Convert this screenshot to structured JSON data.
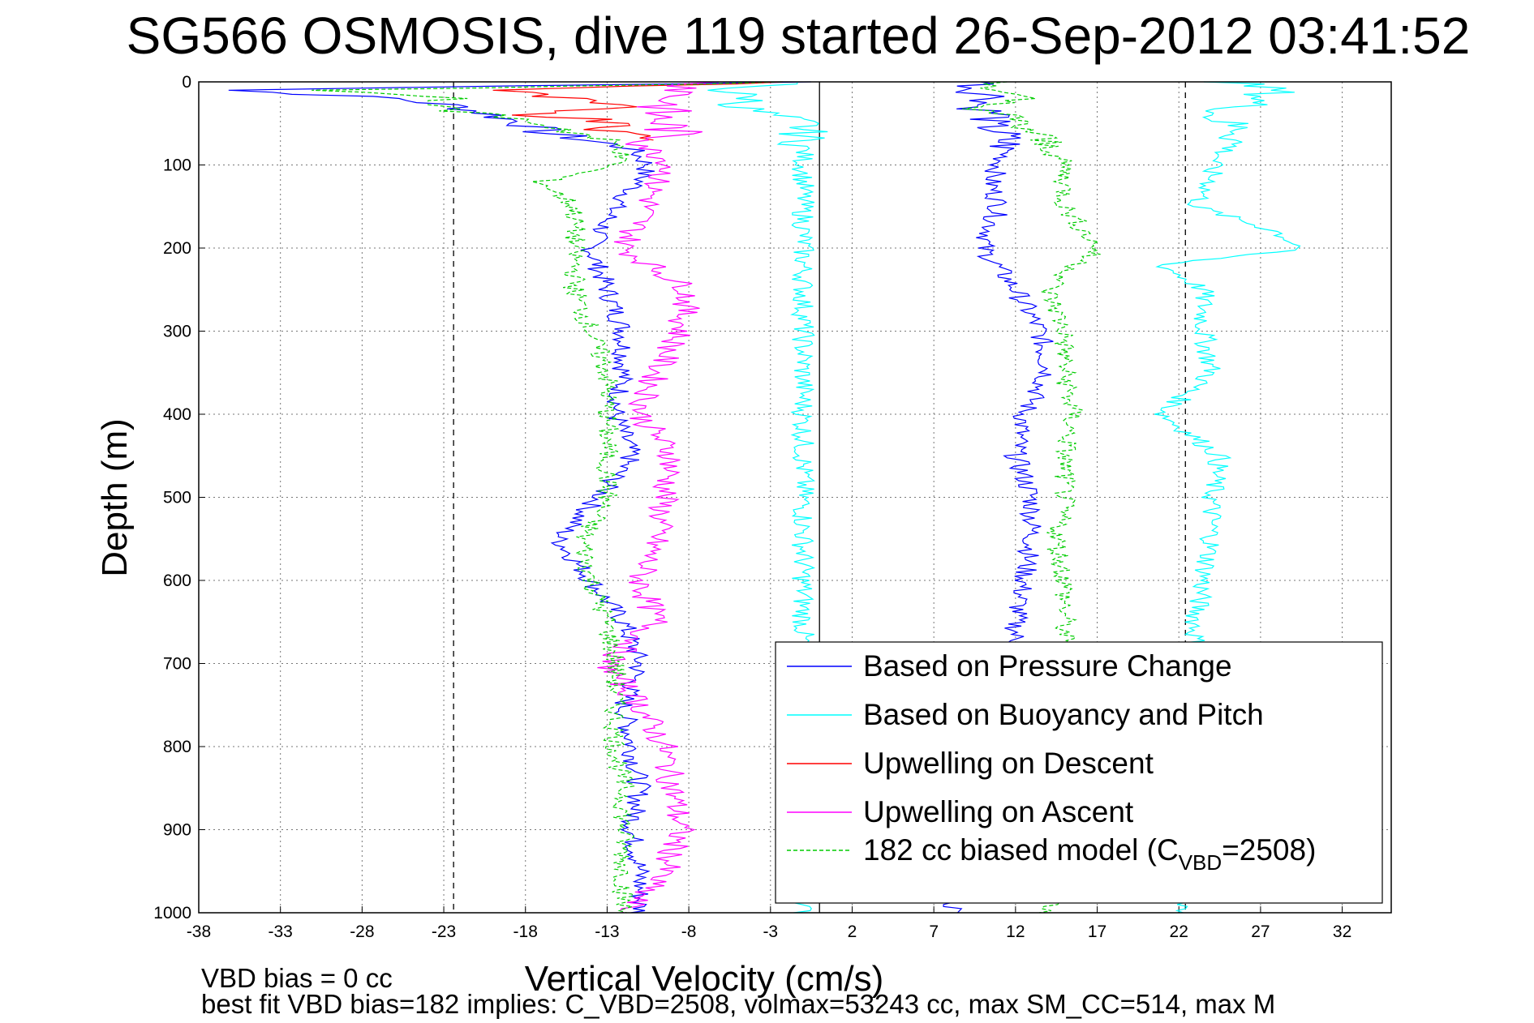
{
  "chart_data": {
    "type": "line",
    "title": "SG566 OSMOSIS, dive 119 started 26-Sep-2012 03:41:52",
    "xlabel": "Vertical Velocity (cm/s)",
    "ylabel": "Depth (m)",
    "xlim": [
      -38,
      35
    ],
    "ylim": [
      1000,
      0
    ],
    "y_reversed": true,
    "grid": true,
    "xticks": [
      "-38",
      "-33",
      "-28",
      "-23",
      "-18",
      "-13",
      "-8",
      "-3",
      "2",
      "7",
      "12",
      "17",
      "22",
      "27",
      "32"
    ],
    "yticks": [
      "0",
      "100",
      "200",
      "300",
      "400",
      "500",
      "600",
      "700",
      "800",
      "900",
      "1000"
    ],
    "reference_lines": [
      {
        "x": -22.4,
        "style": "dashed"
      },
      {
        "x": 0,
        "style": "solid"
      },
      {
        "x": 22.4,
        "style": "dashed"
      }
    ],
    "legend_position": "bottom-right",
    "series": [
      {
        "name": "Based on Pressure Change",
        "color": "#0000ff",
        "depth": [
          0,
          10,
          20,
          30,
          40,
          50,
          60,
          80,
          100,
          120,
          150,
          200,
          250,
          300,
          350,
          400,
          450,
          500,
          550,
          600,
          650,
          700,
          750,
          800,
          850,
          900,
          950,
          1000
        ],
        "descent": [
          -0.5,
          -36,
          -26,
          -22,
          -20,
          -18,
          -17,
          -11.5,
          -10.5,
          -11,
          -12.5,
          -14,
          -13,
          -12,
          -12,
          -12.5,
          -11.5,
          -13.5,
          -16,
          -14,
          -12,
          -11,
          -12,
          -11.5,
          -11,
          -11.5,
          -11,
          -11
        ],
        "ascent": [
          10,
          9.5,
          11,
          9.5,
          11,
          10,
          11,
          11.5,
          11,
          10.5,
          11,
          10,
          12,
          13.5,
          14,
          12.5,
          12,
          13,
          13,
          12.5,
          12,
          12,
          12,
          12,
          12,
          11,
          9,
          8
        ]
      },
      {
        "name": "Based on Buoyancy and Pitch",
        "color": "#00ffff",
        "depth": [
          0,
          10,
          20,
          30,
          40,
          50,
          60,
          80,
          100,
          120,
          150,
          180,
          200,
          220,
          250,
          300,
          350,
          400,
          450,
          500,
          550,
          600,
          650,
          700,
          750,
          800,
          850,
          900,
          950,
          1000
        ],
        "descent": [
          -1,
          -6,
          -4,
          -5,
          -3,
          -1,
          -1,
          -1,
          -1,
          -1,
          -1,
          -1,
          -1,
          -1,
          -1,
          -1,
          -1,
          -1,
          -1,
          -1,
          -1,
          -1,
          -1,
          -1,
          -1,
          -1,
          -1,
          -1,
          -1,
          -1
        ],
        "ascent": [
          25,
          28,
          27,
          26,
          24,
          25,
          26,
          25,
          24,
          24,
          23,
          28,
          29.5,
          21,
          23.5,
          23.5,
          24,
          21,
          24.5,
          24,
          24,
          23.5,
          23,
          23,
          23,
          23,
          23,
          23,
          23,
          22
        ]
      },
      {
        "name": "Upwelling on Descent",
        "color": "#ff0000",
        "depth": [
          0,
          10,
          20,
          30,
          40,
          50,
          60,
          70
        ],
        "values": [
          -1,
          -20,
          -16,
          -13,
          -17,
          -11,
          -13,
          -9
        ]
      },
      {
        "name": "Upwelling on Ascent",
        "color": "#ff00ff",
        "depth": [
          0,
          20,
          40,
          60,
          80,
          100,
          120,
          150,
          200,
          250,
          300,
          350,
          400,
          450,
          500,
          550,
          600,
          650,
          700,
          750,
          800,
          850,
          900,
          950,
          1000
        ],
        "values": [
          -7,
          -9,
          -10,
          -9,
          -10.5,
          -9,
          -10,
          -10.5,
          -12,
          -8,
          -8.5,
          -10,
          -11,
          -9,
          -9.5,
          -10,
          -11,
          -10,
          -13,
          -11,
          -9.5,
          -9,
          -8.5,
          -9.5,
          -12
        ]
      },
      {
        "name": "182 cc biased model (C_VBD=2508)",
        "legend_main": "182 cc biased model (C",
        "legend_sub": "VBD",
        "legend_tail": "=2508)",
        "color": "#00cc00",
        "style": "dashed",
        "depth": [
          0,
          10,
          20,
          30,
          40,
          50,
          60,
          80,
          100,
          120,
          150,
          200,
          250,
          300,
          350,
          400,
          450,
          500,
          550,
          600,
          650,
          700,
          750,
          800,
          850,
          900,
          950,
          1000
        ],
        "descent": [
          -1,
          -30,
          -22,
          -24,
          -20,
          -17,
          -15,
          -12,
          -12.5,
          -17,
          -15,
          -15,
          -15,
          -14,
          -13,
          -13,
          -13,
          -13,
          -14.5,
          -14,
          -13,
          -12.5,
          -12.5,
          -12.5,
          -12,
          -12,
          -12,
          -12
        ],
        "ascent": [
          12,
          10,
          12,
          10,
          11,
          12,
          13,
          14,
          15,
          15,
          15,
          17,
          14,
          15,
          15,
          15.5,
          15,
          15,
          14.5,
          15,
          15,
          15,
          15,
          15,
          15,
          15,
          15,
          14
        ]
      }
    ]
  },
  "footer": {
    "line1": "VBD bias = 0 cc",
    "line2": "best fit VBD bias=182 implies: C_VBD=2508, volmax=53243 cc, max SM_CC=514, max M"
  }
}
